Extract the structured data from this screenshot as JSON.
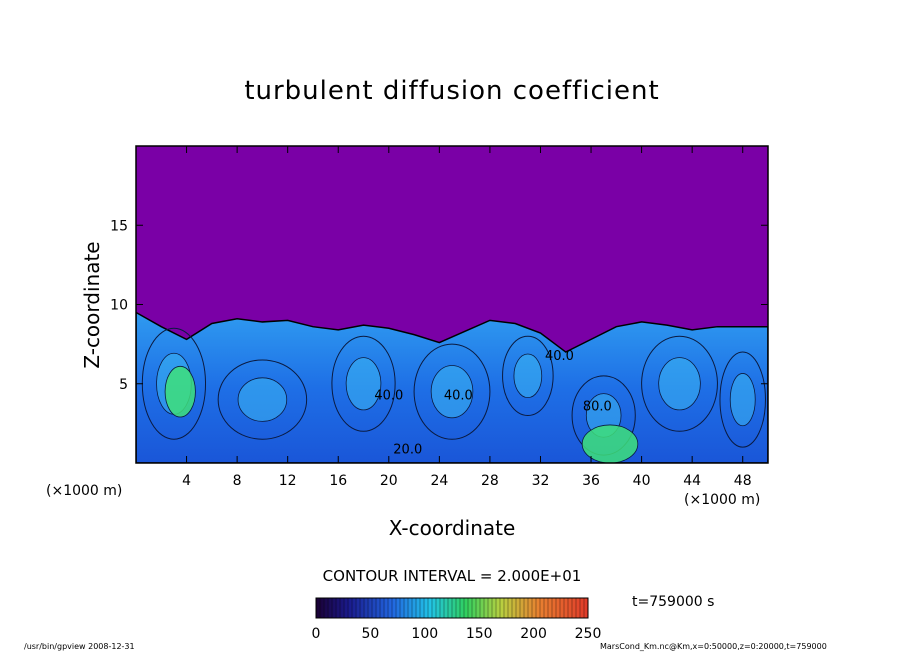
{
  "chart_data": {
    "type": "heatmap",
    "title": "turbulent diffusion coefficient",
    "xlabel": "X-coordinate",
    "ylabel": "Z-coordinate",
    "x_unit_left": "(×1000 m)",
    "x_unit_right": "(×1000 m)",
    "xlim": [
      0,
      50
    ],
    "ylim": [
      0,
      20
    ],
    "x_ticks": [
      4,
      8,
      12,
      16,
      20,
      24,
      28,
      32,
      36,
      40,
      44,
      48
    ],
    "y_ticks": [
      5,
      10,
      15
    ],
    "colorbar": {
      "ticks": [
        0,
        50,
        100,
        150,
        200,
        250
      ],
      "range": [
        0,
        250
      ]
    },
    "contour_interval": "CONTOUR INTERVAL = 2.000E+01",
    "time_label": "t=759000 s",
    "background_color": "#7a00a6",
    "contour_labels": [
      {
        "text": "40.0",
        "x": 20,
        "z": 4
      },
      {
        "text": "40.0",
        "x": 25.5,
        "z": 4
      },
      {
        "text": "20.0",
        "x": 21.5,
        "z": 0.6
      },
      {
        "text": "40.0",
        "x": 33.5,
        "z": 6.5
      },
      {
        "text": "80.0",
        "x": 36.5,
        "z": 3.3
      }
    ],
    "boundary_layer_top": [
      [
        0,
        9.5
      ],
      [
        2,
        8.6
      ],
      [
        4,
        7.8
      ],
      [
        6,
        8.8
      ],
      [
        8,
        9.1
      ],
      [
        10,
        8.9
      ],
      [
        12,
        9.0
      ],
      [
        14,
        8.6
      ],
      [
        16,
        8.4
      ],
      [
        18,
        8.7
      ],
      [
        20,
        8.5
      ],
      [
        22,
        8.1
      ],
      [
        24,
        7.6
      ],
      [
        26,
        8.3
      ],
      [
        28,
        9.0
      ],
      [
        30,
        8.8
      ],
      [
        32,
        8.2
      ],
      [
        34,
        7.0
      ],
      [
        36,
        7.8
      ],
      [
        38,
        8.6
      ],
      [
        40,
        8.9
      ],
      [
        42,
        8.7
      ],
      [
        44,
        8.4
      ],
      [
        46,
        8.6
      ],
      [
        48,
        8.6
      ],
      [
        50,
        8.6
      ]
    ]
  },
  "footer": {
    "left": "/usr/bin/gpview   2008-12-31",
    "right": "MarsCond_Km.nc@Km,x=0:50000,z=0:20000,t=759000"
  }
}
